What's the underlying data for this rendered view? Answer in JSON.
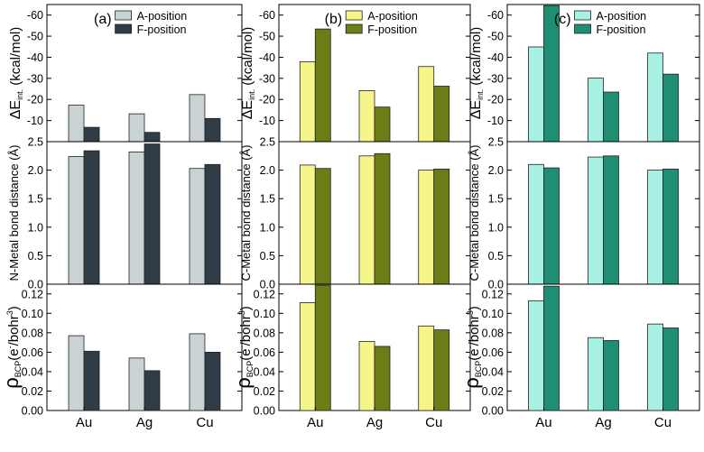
{
  "categories": [
    "Au",
    "Ag",
    "Cu"
  ],
  "columns": [
    {
      "panel_label": "(a)",
      "legend": [
        {
          "name": "A-position",
          "color": "#c9d3d4"
        },
        {
          "name": "F-position",
          "color": "#303c46"
        }
      ],
      "ylabels": {
        "energy": {
          "main": "ΔE",
          "sub": "int.",
          "rest": " (kcal/mol)"
        },
        "distance": {
          "main": "N-Metal bond distance (Å)"
        },
        "density": {
          "main": "ρ",
          "sub": "BCP",
          "rest": "(e",
          "sup": "-",
          "rest2": "/bohr",
          "sup2": "3",
          "rest3": ")"
        }
      }
    },
    {
      "panel_label": "(b)",
      "legend": [
        {
          "name": "A-position",
          "color": "#f5f58a"
        },
        {
          "name": "F-position",
          "color": "#6b7d16"
        }
      ],
      "ylabels": {
        "energy": {
          "main": "ΔE",
          "sub": "int.",
          "rest": " (kcal/mol)"
        },
        "distance": {
          "main": "C-Metal bond distance (Å)"
        },
        "density": {
          "main": "ρ",
          "sub": "BCP",
          "rest": "(e",
          "sup": "-",
          "rest2": "/bohr",
          "sup2": "3",
          "rest3": ")"
        }
      }
    },
    {
      "panel_label": "(c)",
      "legend": [
        {
          "name": "A-position",
          "color": "#a8f0e4"
        },
        {
          "name": "F-position",
          "color": "#1f8f74"
        }
      ],
      "ylabels": {
        "energy": {
          "main": "ΔE",
          "sub": "int.",
          "rest": " (kcal/mol)"
        },
        "distance": {
          "main": "C-Metal bond distance (Å)"
        },
        "density": {
          "main": "ρ",
          "sub": "BCP",
          "rest": "(e",
          "sup": "-",
          "rest2": "/bohr",
          "sup2": "3",
          "rest3": ")"
        }
      }
    }
  ],
  "chart_data": [
    {
      "type": "bar",
      "panel": "(a) top",
      "categories": [
        "Au",
        "Ag",
        "Cu"
      ],
      "ylabel": "ΔEint. (kcal/mol)",
      "ylim": [
        0,
        -65
      ],
      "yticks": [
        -10,
        -20,
        -30,
        -40,
        -50,
        -60
      ],
      "series": [
        {
          "name": "A-position",
          "values": [
            -17.3,
            -13.2,
            -22.3
          ]
        },
        {
          "name": "F-position",
          "values": [
            -6.8,
            -4.4,
            -11.0
          ]
        }
      ]
    },
    {
      "type": "bar",
      "panel": "(a) middle",
      "categories": [
        "Au",
        "Ag",
        "Cu"
      ],
      "ylabel": "N-Metal bond distance (Å)",
      "ylim": [
        0,
        2.5
      ],
      "yticks": [
        0.0,
        0.5,
        1.0,
        1.5,
        2.0,
        2.5
      ],
      "series": [
        {
          "name": "A-position",
          "values": [
            2.24,
            2.32,
            2.03
          ]
        },
        {
          "name": "F-position",
          "values": [
            2.34,
            2.46,
            2.1
          ]
        }
      ]
    },
    {
      "type": "bar",
      "panel": "(a) bottom",
      "categories": [
        "Au",
        "Ag",
        "Cu"
      ],
      "ylabel": "ρBCP(e-/bohr3)",
      "ylim": [
        0,
        0.13
      ],
      "yticks": [
        0.0,
        0.02,
        0.04,
        0.06,
        0.08,
        0.1,
        0.12
      ],
      "series": [
        {
          "name": "A-position",
          "values": [
            0.077,
            0.054,
            0.079
          ]
        },
        {
          "name": "F-position",
          "values": [
            0.061,
            0.041,
            0.06
          ]
        }
      ]
    },
    {
      "type": "bar",
      "panel": "(b) top",
      "categories": [
        "Au",
        "Ag",
        "Cu"
      ],
      "ylabel": "ΔEint. (kcal/mol)",
      "ylim": [
        0,
        -65
      ],
      "yticks": [
        -10,
        -20,
        -30,
        -40,
        -50,
        -60
      ],
      "series": [
        {
          "name": "A-position",
          "values": [
            -37.9,
            -24.2,
            -35.6
          ]
        },
        {
          "name": "F-position",
          "values": [
            -53.4,
            -16.4,
            -26.3
          ]
        }
      ]
    },
    {
      "type": "bar",
      "panel": "(b) middle",
      "categories": [
        "Au",
        "Ag",
        "Cu"
      ],
      "ylabel": "C-Metal bond distance (Å)",
      "ylim": [
        0,
        2.5
      ],
      "yticks": [
        0.0,
        0.5,
        1.0,
        1.5,
        2.0,
        2.5
      ],
      "series": [
        {
          "name": "A-position",
          "values": [
            2.09,
            2.25,
            2.0
          ]
        },
        {
          "name": "F-position",
          "values": [
            2.03,
            2.29,
            2.02
          ]
        }
      ]
    },
    {
      "type": "bar",
      "panel": "(b) bottom",
      "categories": [
        "Au",
        "Ag",
        "Cu"
      ],
      "ylabel": "ρBCP(e-/bohr3)",
      "ylim": [
        0,
        0.13
      ],
      "yticks": [
        0.0,
        0.02,
        0.04,
        0.06,
        0.08,
        0.1,
        0.12
      ],
      "series": [
        {
          "name": "A-position",
          "values": [
            0.111,
            0.071,
            0.087
          ]
        },
        {
          "name": "F-position",
          "values": [
            0.129,
            0.066,
            0.083
          ]
        }
      ]
    },
    {
      "type": "bar",
      "panel": "(c) top",
      "categories": [
        "Au",
        "Ag",
        "Cu"
      ],
      "ylabel": "ΔEint. (kcal/mol)",
      "ylim": [
        0,
        -65
      ],
      "yticks": [
        -10,
        -20,
        -30,
        -40,
        -50,
        -60
      ],
      "series": [
        {
          "name": "A-position",
          "values": [
            -44.9,
            -30.1,
            -42.0
          ]
        },
        {
          "name": "F-position",
          "values": [
            -64.5,
            -23.5,
            -32.0
          ]
        }
      ]
    },
    {
      "type": "bar",
      "panel": "(c) middle",
      "categories": [
        "Au",
        "Ag",
        "Cu"
      ],
      "ylabel": "C-Metal bond distance (Å)",
      "ylim": [
        0,
        2.5
      ],
      "yticks": [
        0.0,
        0.5,
        1.0,
        1.5,
        2.0,
        2.5
      ],
      "series": [
        {
          "name": "A-position",
          "values": [
            2.1,
            2.23,
            2.0
          ]
        },
        {
          "name": "F-position",
          "values": [
            2.04,
            2.25,
            2.02
          ]
        }
      ]
    },
    {
      "type": "bar",
      "panel": "(c) bottom",
      "categories": [
        "Au",
        "Ag",
        "Cu"
      ],
      "ylabel": "ρBCP(e-/bohr3)",
      "ylim": [
        0,
        0.13
      ],
      "yticks": [
        0.0,
        0.02,
        0.04,
        0.06,
        0.08,
        0.1,
        0.12
      ],
      "series": [
        {
          "name": "A-position",
          "values": [
            0.113,
            0.075,
            0.089
          ]
        },
        {
          "name": "F-position",
          "values": [
            0.128,
            0.072,
            0.085
          ]
        }
      ]
    }
  ]
}
